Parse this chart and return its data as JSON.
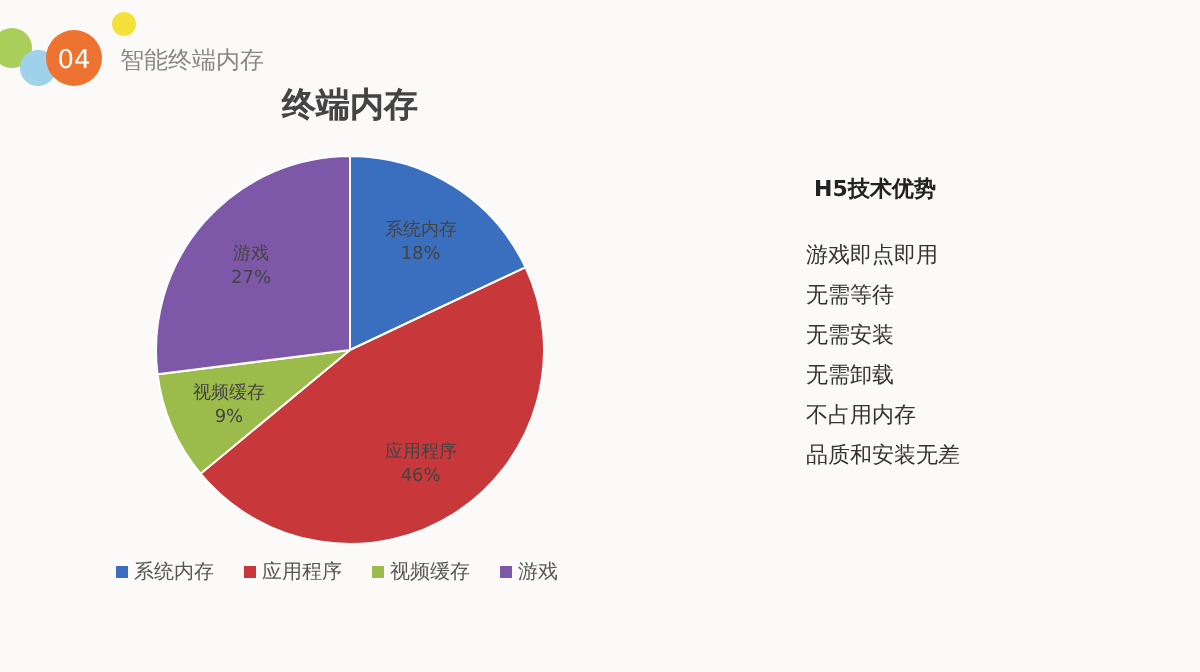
{
  "chart_data": [
    {
      "type": "pie",
      "title": "终端内存",
      "annotations": [
        "04",
        "智能终端内存"
      ],
      "categories": [
        "系统内存",
        "应用程序",
        "视频缓存",
        "游戏"
      ],
      "values": [
        18,
        46,
        9,
        27
      ],
      "colors": [
        "#3a6fc0",
        "#c8373a",
        "#9bbb4a",
        "#7e58a8"
      ],
      "value_labels": [
        "18%",
        "46%",
        "9%",
        "27%"
      ],
      "legend": "bottom"
    },
    {
      "type": "other",
      "title": "H5技术优势",
      "annotations": [
        "游戏即点即用",
        "无需等待",
        "无需安装",
        "无需卸载",
        "不占用内存",
        "品质和安装无差"
      ]
    }
  ]
}
